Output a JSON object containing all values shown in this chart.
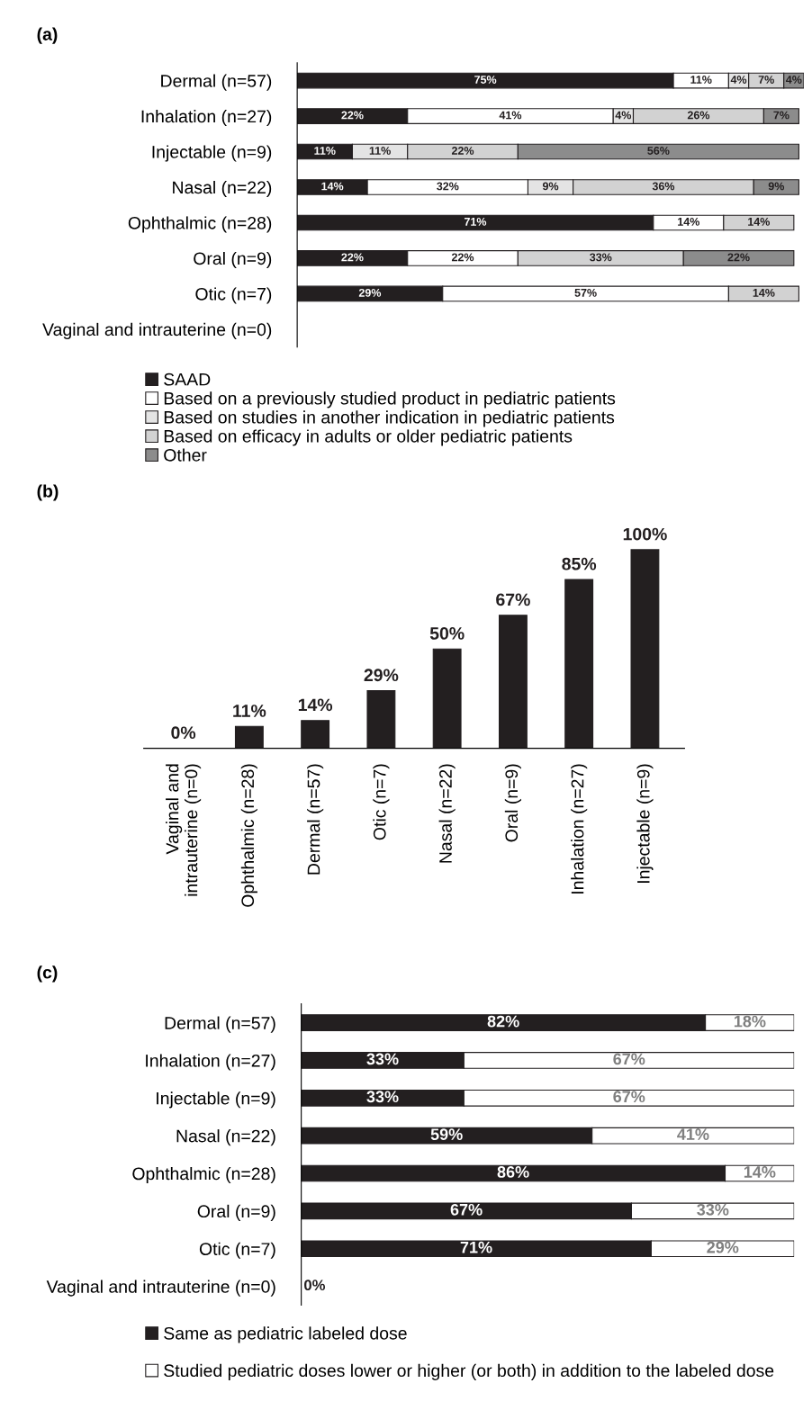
{
  "chart_data": [
    {
      "type": "bar",
      "title": "(a)",
      "orientation": "horizontal",
      "stacked": true,
      "legend": "bottom",
      "grid": false,
      "categories": [
        "Dermal (n=57)",
        "Inhalation (n=27)",
        "Injectable (n=9)",
        "Nasal (n=22)",
        "Ophthalmic (n=28)",
        "Oral (n=9)",
        "Otic (n=7)",
        "Vaginal and intrauterine (n=0)"
      ],
      "series": [
        {
          "name": "SAAD",
          "color": "#231f20",
          "values": [
            75,
            22,
            11,
            14,
            71,
            22,
            29,
            0
          ],
          "value_labels": [
            "75%",
            "22%",
            "11%",
            "14%",
            "71%",
            "22%",
            "29%",
            null
          ]
        },
        {
          "name": "Based on a previously studied product in pediatric patients",
          "color": "#ffffff",
          "values": [
            11,
            41,
            0,
            32,
            14,
            22,
            57,
            0
          ],
          "value_labels": [
            "11%",
            "41%",
            null,
            "32%",
            "14%",
            "22%",
            "57%",
            null
          ]
        },
        {
          "name": "Based on studies in another indication in pediatric patients",
          "color": "#e4e4e4",
          "values": [
            4,
            4,
            11,
            9,
            0,
            0,
            0,
            0
          ],
          "value_labels": [
            "4%",
            "4%",
            "11%",
            "9%",
            null,
            null,
            null,
            null
          ]
        },
        {
          "name": "Based on efficacy in adults or older pediatric patients",
          "color": "#d2d2d2",
          "values": [
            7,
            26,
            22,
            36,
            14,
            33,
            14,
            0
          ],
          "value_labels": [
            "7%",
            "26%",
            "22%",
            "36%",
            "14%",
            "33%",
            "14%",
            null
          ]
        },
        {
          "name": "Other",
          "color": "#8c8c8c",
          "values": [
            4,
            7,
            56,
            9,
            0,
            22,
            0,
            0
          ],
          "value_labels": [
            "4%",
            "7%",
            "56%",
            "9%",
            null,
            "22%",
            null,
            null
          ]
        }
      ]
    },
    {
      "type": "bar",
      "title": "(b)",
      "legend": false,
      "grid": false,
      "categories": [
        "Vaginal and intrauterine (n=0)",
        "Ophthalmic (n=28)",
        "Dermal (n=57)",
        "Otic (n=7)",
        "Nasal (n=22)",
        "Oral (n=9)",
        "Inhalation (n=27)",
        "Injectable (n=9)"
      ],
      "series": [
        {
          "color": "#231f20",
          "values": [
            0,
            11,
            14,
            29,
            50,
            67,
            85,
            100
          ],
          "value_labels": [
            "0%",
            "11%",
            "14%",
            "29%",
            "50%",
            "67%",
            "85%",
            "100%"
          ]
        }
      ]
    },
    {
      "type": "bar",
      "title": "(c)",
      "orientation": "horizontal",
      "stacked": true,
      "legend": "bottom",
      "grid": false,
      "categories": [
        "Dermal (n=57)",
        "Inhalation (n=27)",
        "Injectable (n=9)",
        "Nasal (n=22)",
        "Ophthalmic (n=28)",
        "Oral (n=9)",
        "Otic (n=7)",
        "Vaginal and intrauterine (n=0)"
      ],
      "series": [
        {
          "name": "Same as pediatric labeled dose",
          "color": "#231f20",
          "values": [
            82,
            33,
            33,
            59,
            86,
            67,
            71,
            0
          ],
          "value_labels": [
            "82%",
            "33%",
            "33%",
            "59%",
            "86%",
            "67%",
            "71%",
            "0%"
          ]
        },
        {
          "name": "Studied pediatric doses lower or higher (or both) in addition to the labeled dose",
          "color": "#ffffff",
          "values": [
            18,
            67,
            67,
            41,
            14,
            33,
            29,
            0
          ],
          "value_labels": [
            "18%",
            "67%",
            "67%",
            "41%",
            "14%",
            "33%",
            "29%",
            null
          ]
        }
      ]
    }
  ]
}
